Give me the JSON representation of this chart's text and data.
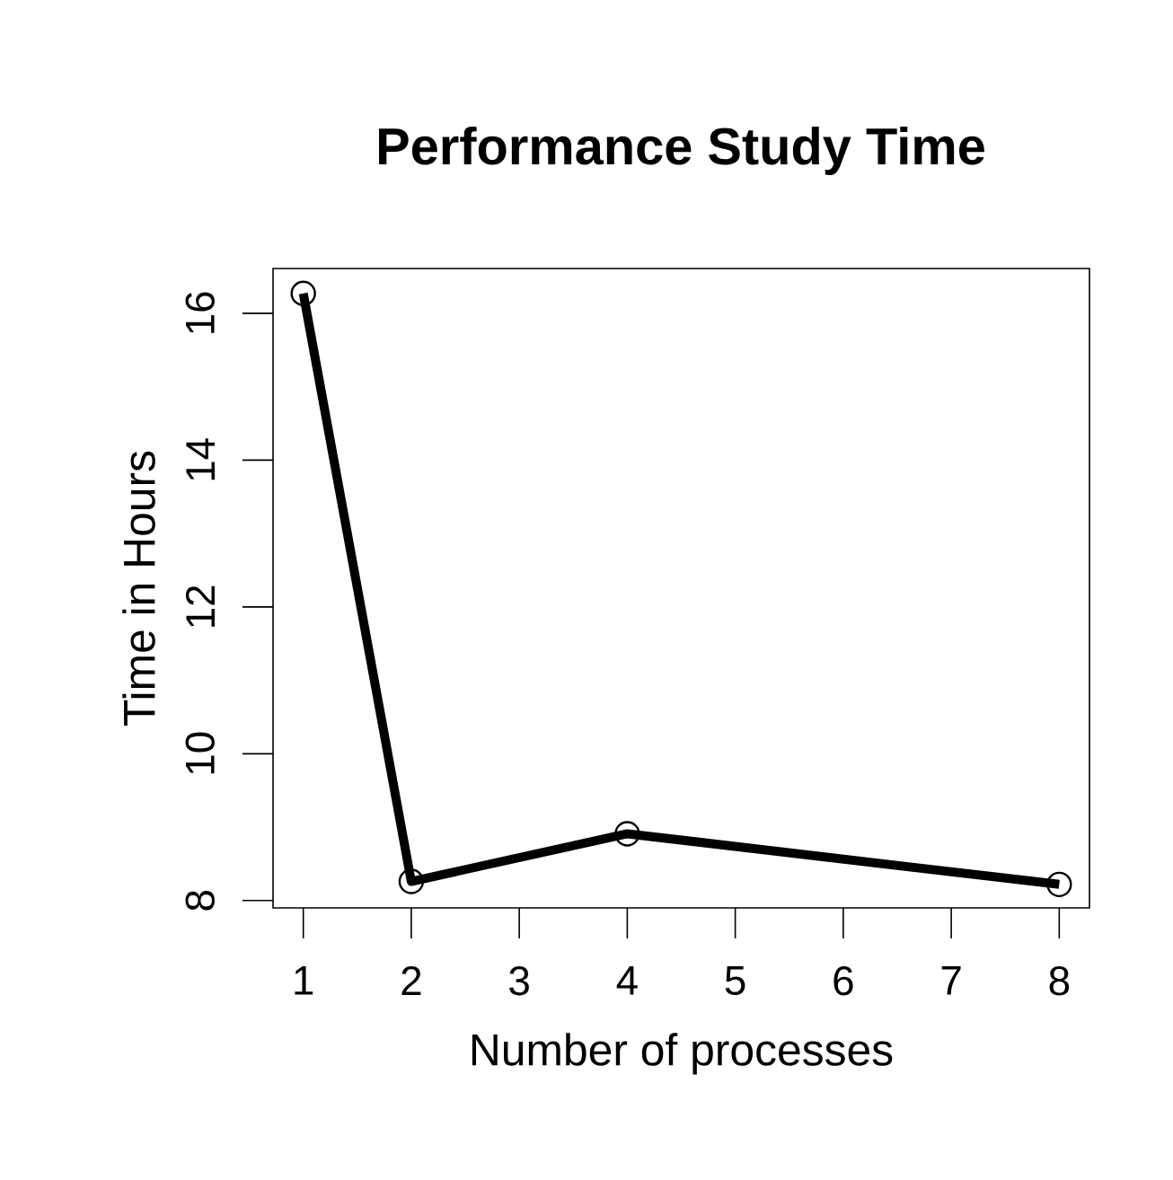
{
  "chart_data": {
    "type": "line",
    "title": "Performance Study Time",
    "xlabel": "Number of processes",
    "ylabel": "Time in Hours",
    "x": [
      1,
      2,
      4,
      8
    ],
    "values": [
      16.27,
      8.26,
      8.91,
      8.22
    ],
    "color": "#000000",
    "xlim": [
      0.72,
      8.28
    ],
    "ylim": [
      7.9,
      16.61
    ],
    "xticks": [
      1,
      2,
      3,
      4,
      5,
      6,
      7,
      8
    ],
    "yticks": [
      8,
      10,
      12,
      14,
      16
    ],
    "marker": "circle",
    "line_style": "solid"
  }
}
